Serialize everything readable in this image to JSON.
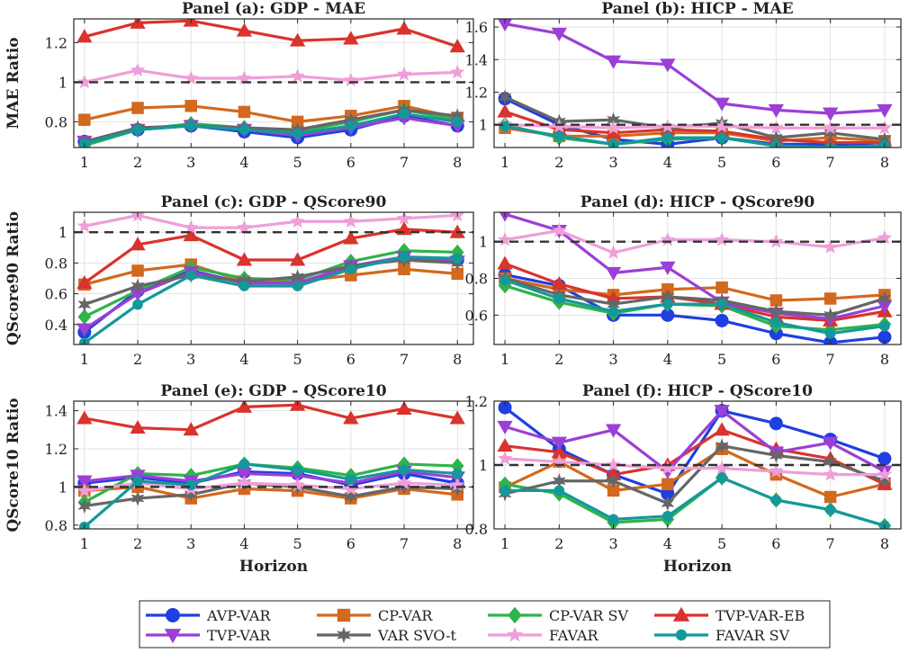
{
  "figure": {
    "x_label": "Horizon",
    "x_ticks": [
      1,
      2,
      3,
      4,
      5,
      6,
      7,
      8
    ],
    "row_ylabels": [
      "MAE Ratio",
      "QScore90 Ratio",
      "QScore10 Ratio"
    ]
  },
  "legend": {
    "entries": [
      {
        "name": "AVP-VAR",
        "color": "#1f3fe0",
        "marker": "circle"
      },
      {
        "name": "CP-VAR",
        "color": "#d2691e",
        "marker": "square"
      },
      {
        "name": "CP-VAR SV",
        "color": "#2fb34a",
        "marker": "diamond"
      },
      {
        "name": "TVP-VAR-EB",
        "color": "#d9332d",
        "marker": "triangle-up"
      },
      {
        "name": "TVP-VAR",
        "color": "#9b3fd6",
        "marker": "triangle-down"
      },
      {
        "name": "VAR SVO-t",
        "color": "#666666",
        "marker": "hexagram"
      },
      {
        "name": "FAVAR",
        "color": "#ee9fd9",
        "marker": "pentagram"
      },
      {
        "name": "FAVAR SV",
        "color": "#14999a",
        "marker": "circle-small"
      }
    ]
  },
  "chart_data": [
    {
      "type": "line",
      "title": "Panel (a): GDP - MAE",
      "ylabel": "MAE Ratio",
      "xlabel": "",
      "x": [
        1,
        2,
        3,
        4,
        5,
        6,
        7,
        8
      ],
      "xlim": [
        0.8,
        8.3
      ],
      "ylim": [
        0.67,
        1.32
      ],
      "yticks": [
        0.8,
        1,
        1.2
      ],
      "ytick_labels": [
        "0.8",
        "1",
        "1.2"
      ],
      "reference_line": 1,
      "grid": true,
      "series": [
        {
          "name": "AVP-VAR",
          "values": [
            0.7,
            0.76,
            0.78,
            0.75,
            0.72,
            0.76,
            0.83,
            0.78
          ]
        },
        {
          "name": "CP-VAR",
          "values": [
            0.81,
            0.87,
            0.88,
            0.85,
            0.8,
            0.83,
            0.88,
            0.82
          ]
        },
        {
          "name": "CP-VAR SV",
          "values": [
            0.68,
            0.76,
            0.79,
            0.77,
            0.75,
            0.8,
            0.86,
            0.81
          ]
        },
        {
          "name": "TVP-VAR-EB",
          "values": [
            1.23,
            1.3,
            1.31,
            1.26,
            1.21,
            1.22,
            1.27,
            1.18
          ]
        },
        {
          "name": "TVP-VAR",
          "values": [
            0.7,
            0.76,
            0.78,
            0.76,
            0.73,
            0.77,
            0.82,
            0.78
          ]
        },
        {
          "name": "VAR SVO-t",
          "values": [
            0.7,
            0.77,
            0.78,
            0.77,
            0.76,
            0.81,
            0.86,
            0.83
          ]
        },
        {
          "name": "FAVAR",
          "values": [
            1.0,
            1.06,
            1.02,
            1.02,
            1.03,
            1.01,
            1.04,
            1.05
          ]
        },
        {
          "name": "FAVAR SV",
          "values": [
            0.69,
            0.76,
            0.78,
            0.76,
            0.74,
            0.78,
            0.84,
            0.8
          ]
        }
      ]
    },
    {
      "type": "line",
      "title": "Panel (b): HICP - MAE",
      "ylabel": "",
      "xlabel": "",
      "x": [
        1,
        2,
        3,
        4,
        5,
        6,
        7,
        8
      ],
      "xlim": [
        0.8,
        8.3
      ],
      "ylim": [
        0.86,
        1.65
      ],
      "yticks": [
        1,
        1.2,
        1.4,
        1.6
      ],
      "ytick_labels": [
        "1",
        "1.2",
        "1.4",
        "1.6"
      ],
      "reference_line": 1,
      "grid": true,
      "series": [
        {
          "name": "AVP-VAR",
          "values": [
            1.16,
            1.0,
            0.91,
            0.88,
            0.92,
            0.88,
            0.88,
            0.87
          ]
        },
        {
          "name": "CP-VAR",
          "values": [
            0.98,
            0.93,
            0.93,
            0.95,
            0.95,
            0.9,
            0.92,
            0.9
          ]
        },
        {
          "name": "CP-VAR SV",
          "values": [
            1.0,
            0.92,
            0.88,
            0.91,
            0.92,
            0.87,
            0.86,
            0.87
          ]
        },
        {
          "name": "TVP-VAR-EB",
          "values": [
            1.08,
            0.97,
            0.95,
            0.97,
            0.96,
            0.91,
            0.89,
            0.89
          ]
        },
        {
          "name": "TVP-VAR",
          "values": [
            1.62,
            1.56,
            1.39,
            1.37,
            1.13,
            1.09,
            1.07,
            1.09
          ]
        },
        {
          "name": "VAR SVO-t",
          "values": [
            1.17,
            1.02,
            1.03,
            0.98,
            1.01,
            0.92,
            0.95,
            0.91
          ]
        },
        {
          "name": "FAVAR",
          "values": [
            1.0,
            0.99,
            0.98,
            0.99,
            0.99,
            0.98,
            0.98,
            0.98
          ]
        },
        {
          "name": "FAVAR SV",
          "values": [
            0.99,
            0.93,
            0.88,
            0.92,
            0.92,
            0.87,
            0.86,
            0.87
          ]
        }
      ]
    },
    {
      "type": "line",
      "title": "Panel (c): GDP - QScore90",
      "ylabel": "QScore90 Ratio",
      "xlabel": "",
      "x": [
        1,
        2,
        3,
        4,
        5,
        6,
        7,
        8
      ],
      "xlim": [
        0.8,
        8.3
      ],
      "ylim": [
        0.27,
        1.13
      ],
      "yticks": [
        0.4,
        0.6,
        0.8,
        1
      ],
      "ytick_labels": [
        "0.4",
        "0.6",
        "0.8",
        "1"
      ],
      "reference_line": 1,
      "grid": true,
      "series": [
        {
          "name": "AVP-VAR",
          "values": [
            0.35,
            0.62,
            0.75,
            0.67,
            0.67,
            0.77,
            0.83,
            0.82
          ]
        },
        {
          "name": "CP-VAR",
          "values": [
            0.66,
            0.75,
            0.79,
            0.68,
            0.68,
            0.72,
            0.76,
            0.73
          ]
        },
        {
          "name": "CP-VAR SV",
          "values": [
            0.45,
            0.62,
            0.77,
            0.7,
            0.69,
            0.81,
            0.88,
            0.87
          ]
        },
        {
          "name": "TVP-VAR-EB",
          "values": [
            0.67,
            0.92,
            0.98,
            0.82,
            0.82,
            0.96,
            1.02,
            1.0
          ]
        },
        {
          "name": "TVP-VAR",
          "values": [
            0.37,
            0.6,
            0.74,
            0.67,
            0.67,
            0.78,
            0.84,
            0.81
          ]
        },
        {
          "name": "VAR SVO-t",
          "values": [
            0.53,
            0.65,
            0.72,
            0.68,
            0.71,
            0.78,
            0.82,
            0.8
          ]
        },
        {
          "name": "FAVAR",
          "values": [
            1.04,
            1.11,
            1.03,
            1.03,
            1.07,
            1.07,
            1.09,
            1.11
          ]
        },
        {
          "name": "FAVAR SV",
          "values": [
            0.28,
            0.53,
            0.72,
            0.65,
            0.65,
            0.76,
            0.84,
            0.83
          ]
        }
      ]
    },
    {
      "type": "line",
      "title": "Panel (d): HICP - QScore90",
      "ylabel": "",
      "xlabel": "",
      "x": [
        1,
        2,
        3,
        4,
        5,
        6,
        7,
        8
      ],
      "xlim": [
        0.8,
        8.3
      ],
      "ylim": [
        0.44,
        1.16
      ],
      "yticks": [
        0.6,
        0.8,
        1
      ],
      "ytick_labels": [
        "0.6",
        "0.8",
        "1"
      ],
      "reference_line": 1,
      "grid": true,
      "series": [
        {
          "name": "AVP-VAR",
          "values": [
            0.82,
            0.76,
            0.6,
            0.6,
            0.57,
            0.5,
            0.45,
            0.48
          ]
        },
        {
          "name": "CP-VAR",
          "values": [
            0.8,
            0.74,
            0.71,
            0.74,
            0.75,
            0.68,
            0.69,
            0.71
          ]
        },
        {
          "name": "CP-VAR SV",
          "values": [
            0.76,
            0.67,
            0.61,
            0.66,
            0.65,
            0.54,
            0.52,
            0.55
          ]
        },
        {
          "name": "TVP-VAR-EB",
          "values": [
            0.88,
            0.77,
            0.69,
            0.7,
            0.66,
            0.59,
            0.57,
            0.62
          ]
        },
        {
          "name": "TVP-VAR",
          "values": [
            1.15,
            1.06,
            0.83,
            0.86,
            0.67,
            0.61,
            0.58,
            0.65
          ]
        },
        {
          "name": "VAR SVO-t",
          "values": [
            0.8,
            0.71,
            0.66,
            0.7,
            0.68,
            0.62,
            0.6,
            0.69
          ]
        },
        {
          "name": "FAVAR",
          "values": [
            1.01,
            1.06,
            0.94,
            1.01,
            1.01,
            1.0,
            0.97,
            1.02
          ]
        },
        {
          "name": "FAVAR SV",
          "values": [
            0.79,
            0.69,
            0.62,
            0.66,
            0.66,
            0.56,
            0.5,
            0.54
          ]
        }
      ]
    },
    {
      "type": "line",
      "title": "Panel (e): GDP - QScore10",
      "ylabel": "QScore10 Ratio",
      "xlabel": "Horizon",
      "x": [
        1,
        2,
        3,
        4,
        5,
        6,
        7,
        8
      ],
      "xlim": [
        0.8,
        8.3
      ],
      "ylim": [
        0.78,
        1.45
      ],
      "yticks": [
        0.8,
        1,
        1.2,
        1.4
      ],
      "ytick_labels": [
        "0.8",
        "1",
        "1.2",
        "1.4"
      ],
      "reference_line": 1,
      "grid": true,
      "series": [
        {
          "name": "AVP-VAR",
          "values": [
            1.02,
            1.05,
            1.02,
            1.08,
            1.07,
            1.01,
            1.07,
            1.02
          ]
        },
        {
          "name": "CP-VAR",
          "values": [
            0.98,
            1.0,
            0.94,
            0.99,
            0.98,
            0.94,
            0.99,
            0.96
          ]
        },
        {
          "name": "CP-VAR SV",
          "values": [
            0.92,
            1.07,
            1.06,
            1.12,
            1.1,
            1.06,
            1.12,
            1.11
          ]
        },
        {
          "name": "TVP-VAR-EB",
          "values": [
            1.36,
            1.31,
            1.3,
            1.42,
            1.43,
            1.36,
            1.41,
            1.36
          ]
        },
        {
          "name": "TVP-VAR",
          "values": [
            1.03,
            1.06,
            1.03,
            1.07,
            1.06,
            1.02,
            1.08,
            1.05
          ]
        },
        {
          "name": "VAR SVO-t",
          "values": [
            0.9,
            0.94,
            0.96,
            1.02,
            1.0,
            0.95,
            1.0,
            0.99
          ]
        },
        {
          "name": "FAVAR",
          "values": [
            0.98,
            1.02,
            0.99,
            1.02,
            1.01,
            0.99,
            1.02,
            1.01
          ]
        },
        {
          "name": "FAVAR SV",
          "values": [
            0.79,
            1.03,
            1.01,
            1.12,
            1.09,
            1.04,
            1.09,
            1.07
          ]
        }
      ]
    },
    {
      "type": "line",
      "title": "Panel (f): HICP - QScore10",
      "ylabel": "",
      "xlabel": "Horizon",
      "x": [
        1,
        2,
        3,
        4,
        5,
        6,
        7,
        8
      ],
      "xlim": [
        0.8,
        8.3
      ],
      "ylim": [
        0.8,
        1.2
      ],
      "yticks": [
        0.8,
        1,
        1.2
      ],
      "ytick_labels": [
        "0.8",
        "1",
        "1.2"
      ],
      "reference_line": 1,
      "grid": true,
      "series": [
        {
          "name": "AVP-VAR",
          "values": [
            1.18,
            1.05,
            0.97,
            0.91,
            1.17,
            1.13,
            1.08,
            1.02
          ]
        },
        {
          "name": "CP-VAR",
          "values": [
            0.93,
            1.01,
            0.92,
            0.94,
            1.05,
            0.97,
            0.9,
            0.94
          ]
        },
        {
          "name": "CP-VAR SV",
          "values": [
            0.94,
            0.91,
            0.82,
            0.83,
            0.96,
            0.89,
            0.86,
            0.81
          ]
        },
        {
          "name": "TVP-VAR-EB",
          "values": [
            1.06,
            1.04,
            0.97,
            1.0,
            1.11,
            1.05,
            1.02,
            0.94
          ]
        },
        {
          "name": "TVP-VAR",
          "values": [
            1.12,
            1.07,
            1.11,
            0.98,
            1.17,
            1.04,
            1.07,
            0.98
          ]
        },
        {
          "name": "VAR SVO-t",
          "values": [
            0.91,
            0.95,
            0.95,
            0.88,
            1.06,
            1.03,
            1.01,
            0.95
          ]
        },
        {
          "name": "FAVAR",
          "values": [
            1.02,
            1.01,
            1.0,
            0.99,
            0.99,
            0.98,
            0.97,
            0.97
          ]
        },
        {
          "name": "FAVAR SV",
          "values": [
            0.92,
            0.92,
            0.83,
            0.84,
            0.96,
            0.89,
            0.86,
            0.81
          ]
        }
      ]
    }
  ]
}
